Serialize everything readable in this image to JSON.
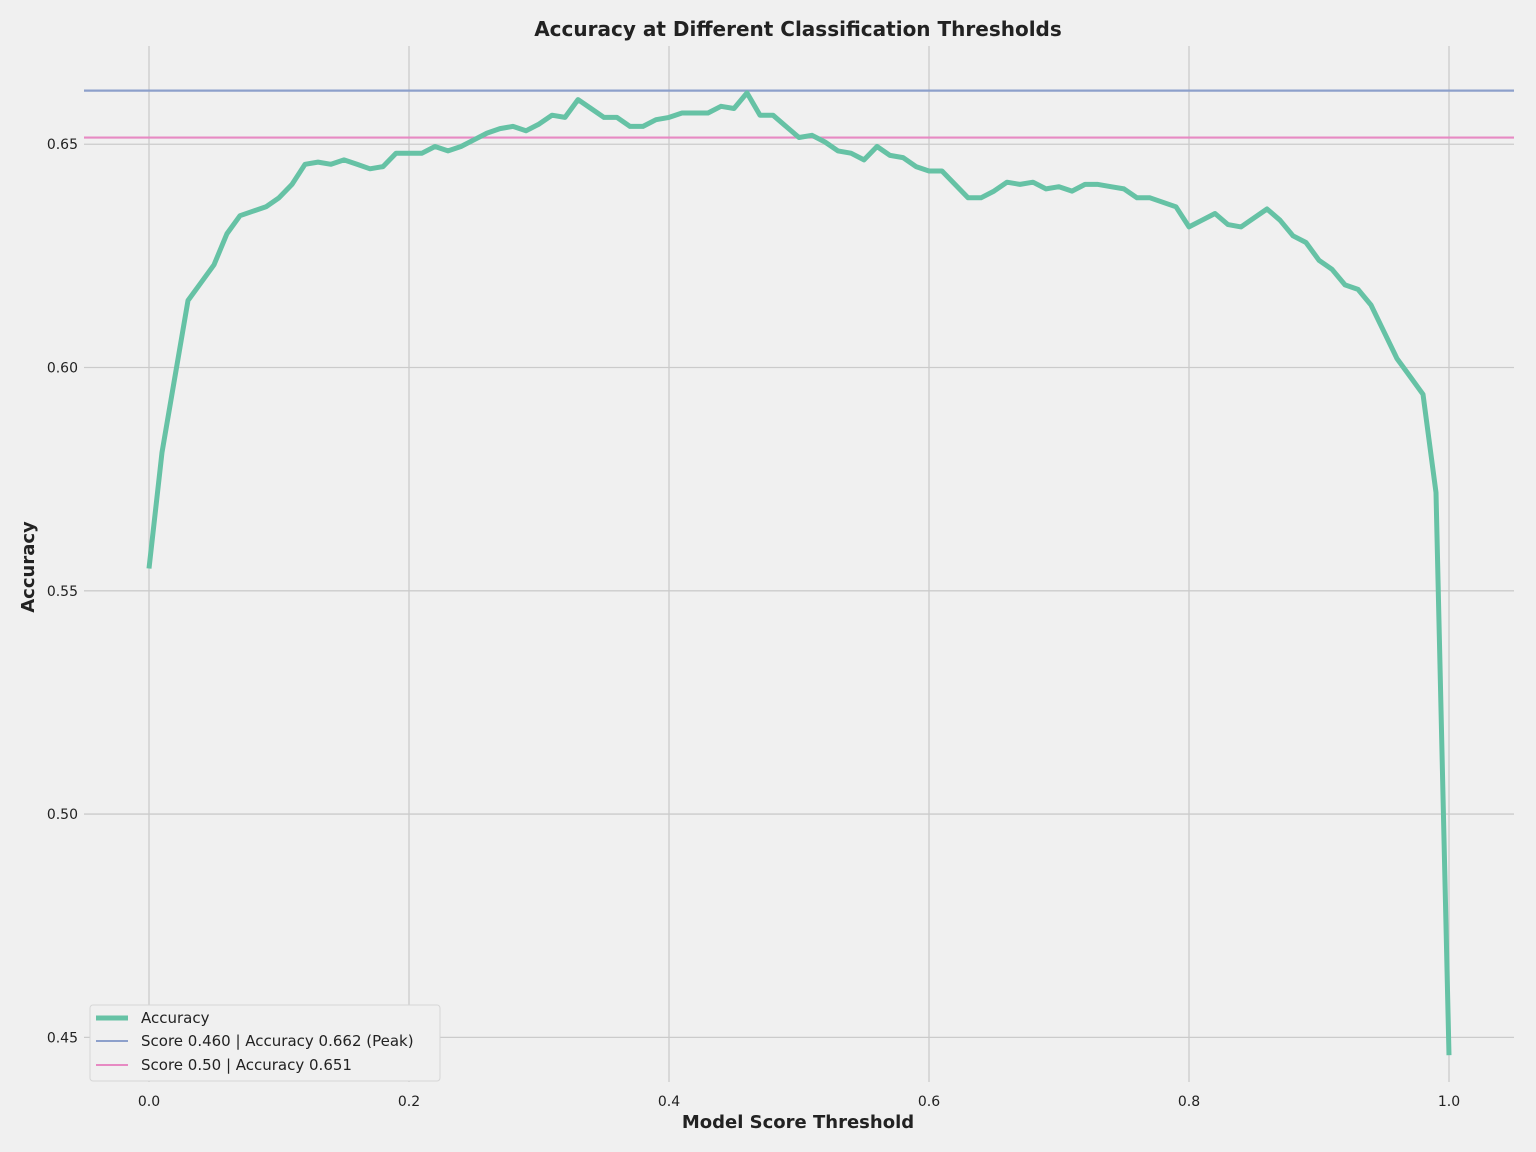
{
  "chart_data": {
    "type": "line",
    "title": "Accuracy at Different Classification Thresholds",
    "xlabel": "Model Score Threshold",
    "ylabel": "Accuracy",
    "xlim": [
      -0.05,
      1.05
    ],
    "ylim": [
      0.44,
      0.672
    ],
    "x_ticks": [
      0.0,
      0.2,
      0.4,
      0.6,
      0.8,
      1.0
    ],
    "x_tick_labels": [
      "0.0",
      "0.2",
      "0.4",
      "0.6",
      "0.8",
      "1.0"
    ],
    "y_ticks": [
      0.45,
      0.5,
      0.55,
      0.6,
      0.65
    ],
    "y_tick_labels": [
      "0.45",
      "0.50",
      "0.55",
      "0.60",
      "0.65"
    ],
    "grid": true,
    "legend_position": "lower-left",
    "series": [
      {
        "name": "Accuracy",
        "color": "#66c2a5",
        "x": [
          0.0,
          0.01,
          0.02,
          0.03,
          0.04,
          0.05,
          0.06,
          0.07,
          0.08,
          0.09,
          0.1,
          0.11,
          0.12,
          0.13,
          0.14,
          0.15,
          0.16,
          0.17,
          0.18,
          0.19,
          0.2,
          0.21,
          0.22,
          0.23,
          0.24,
          0.25,
          0.26,
          0.27,
          0.28,
          0.29,
          0.3,
          0.31,
          0.32,
          0.33,
          0.34,
          0.35,
          0.36,
          0.37,
          0.38,
          0.39,
          0.4,
          0.41,
          0.42,
          0.43,
          0.44,
          0.45,
          0.46,
          0.47,
          0.48,
          0.49,
          0.5,
          0.51,
          0.52,
          0.53,
          0.54,
          0.55,
          0.56,
          0.57,
          0.58,
          0.59,
          0.6,
          0.61,
          0.62,
          0.63,
          0.64,
          0.65,
          0.66,
          0.67,
          0.68,
          0.69,
          0.7,
          0.71,
          0.72,
          0.73,
          0.74,
          0.75,
          0.76,
          0.77,
          0.78,
          0.79,
          0.8,
          0.81,
          0.82,
          0.83,
          0.84,
          0.85,
          0.86,
          0.87,
          0.88,
          0.89,
          0.9,
          0.91,
          0.92,
          0.93,
          0.94,
          0.95,
          0.96,
          0.97,
          0.98,
          0.99,
          1.0
        ],
        "values": [
          0.555,
          0.581,
          0.598,
          0.615,
          0.619,
          0.623,
          0.63,
          0.634,
          0.635,
          0.636,
          0.638,
          0.641,
          0.6455,
          0.646,
          0.6455,
          0.6465,
          0.6455,
          0.6445,
          0.645,
          0.648,
          0.648,
          0.648,
          0.6495,
          0.6485,
          0.6495,
          0.651,
          0.6525,
          0.6535,
          0.654,
          0.653,
          0.6545,
          0.6565,
          0.656,
          0.66,
          0.658,
          0.656,
          0.656,
          0.654,
          0.654,
          0.6555,
          0.656,
          0.657,
          0.657,
          0.657,
          0.6585,
          0.658,
          0.6615,
          0.6565,
          0.6565,
          0.654,
          0.6515,
          0.652,
          0.6505,
          0.6485,
          0.648,
          0.6465,
          0.6495,
          0.6475,
          0.647,
          0.645,
          0.644,
          0.644,
          0.641,
          0.638,
          0.638,
          0.6395,
          0.6415,
          0.641,
          0.6415,
          0.64,
          0.6405,
          0.6395,
          0.641,
          0.641,
          0.6405,
          0.64,
          0.638,
          0.638,
          0.637,
          0.636,
          0.6315,
          0.633,
          0.6345,
          0.632,
          0.6315,
          0.6335,
          0.6355,
          0.633,
          0.6295,
          0.628,
          0.624,
          0.622,
          0.6185,
          0.6175,
          0.614,
          0.608,
          0.602,
          0.598,
          0.594,
          0.572,
          0.446
        ]
      }
    ],
    "reference_lines": [
      {
        "label": "Score 0.460 | Accuracy 0.662 (Peak)",
        "y": 0.662,
        "color": "#8da0cb"
      },
      {
        "label": "Score 0.50 | Accuracy 0.651",
        "y": 0.6515,
        "color": "#e78ac3"
      }
    ]
  }
}
